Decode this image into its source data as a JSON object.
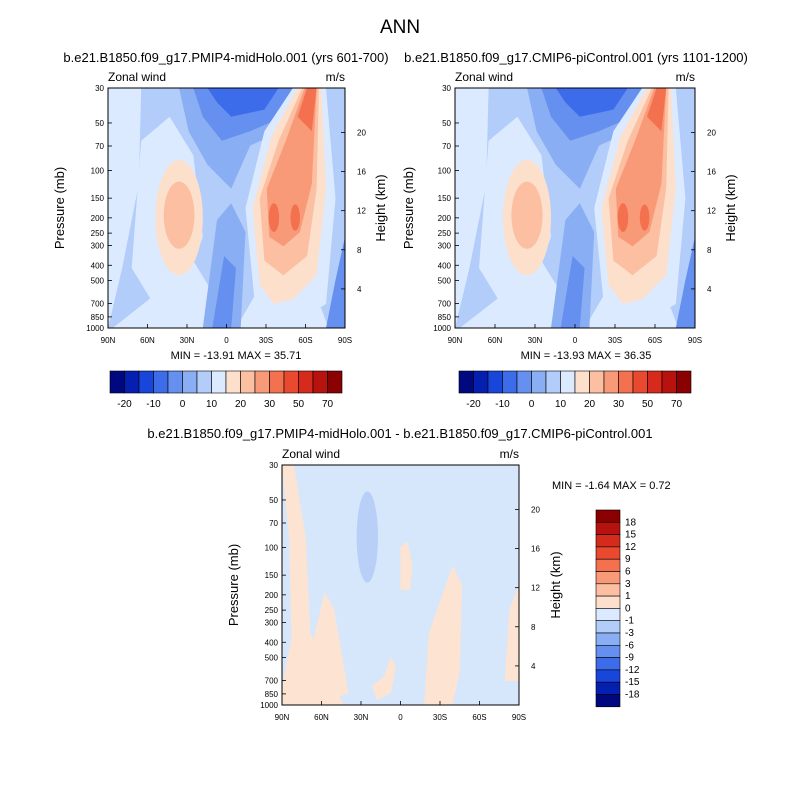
{
  "page": {
    "title": "ANN"
  },
  "colors": {
    "positive": [
      "#fde0cc",
      "#fcbfa1",
      "#f89a78",
      "#f4714f",
      "#e94a2f",
      "#d62a1c",
      "#b8120f",
      "#8b0000"
    ],
    "negative": [
      "#dbeaff",
      "#b3cdfa",
      "#8aaef3",
      "#6590ef",
      "#3d6ceb",
      "#1846db",
      "#0520b0",
      "#00087f"
    ],
    "diff_pos": "#fde4d2",
    "diff_neg": "#d6e7fb",
    "diff_neg2": "#b8cff7"
  },
  "chart_data": [
    {
      "type": "heatmap",
      "title": "b.e21.B1850.f09_g17.PMIP4-midHolo.001 (yrs 601-700)",
      "left_label": "Zonal wind",
      "right_label": "m/s",
      "xlabel": "",
      "ylabel": "Pressure (mb)",
      "ylabel_right": "Height (km)",
      "x_ticks": [
        "90N",
        "60N",
        "30N",
        "0",
        "30S",
        "60S",
        "90S"
      ],
      "y_ticks": [
        "30",
        "50",
        "70",
        "100",
        "150",
        "200",
        "250",
        "300",
        "400",
        "500",
        "700",
        "850",
        "1000"
      ],
      "y_ticks_right": [
        "20",
        "16",
        "12",
        "8",
        "4"
      ],
      "y_scale": "log",
      "ylim": [
        1000,
        30
      ],
      "stats": "MIN = -13.91  MAX =  35.71",
      "colorbar_labels": [
        "-20",
        "-10",
        "0",
        "10",
        "20",
        "30",
        "50",
        "70"
      ]
    },
    {
      "type": "heatmap",
      "title": "b.e21.B1850.f09_g17.CMIP6-piControl.001 (yrs 1101-1200)",
      "left_label": "Zonal wind",
      "right_label": "m/s",
      "xlabel": "",
      "ylabel": "Pressure (mb)",
      "ylabel_right": "Height (km)",
      "x_ticks": [
        "90N",
        "60N",
        "30N",
        "0",
        "30S",
        "60S",
        "90S"
      ],
      "y_ticks": [
        "30",
        "50",
        "70",
        "100",
        "150",
        "200",
        "250",
        "300",
        "400",
        "500",
        "700",
        "850",
        "1000"
      ],
      "y_ticks_right": [
        "20",
        "16",
        "12",
        "8",
        "4"
      ],
      "y_scale": "log",
      "ylim": [
        1000,
        30
      ],
      "stats": "MIN = -13.93  MAX =  36.35",
      "colorbar_labels": [
        "-20",
        "-10",
        "0",
        "10",
        "20",
        "30",
        "50",
        "70"
      ]
    },
    {
      "type": "heatmap",
      "title": "b.e21.B1850.f09_g17.PMIP4-midHolo.001 - b.e21.B1850.f09_g17.CMIP6-piControl.001",
      "left_label": "Zonal wind",
      "right_label": "m/s",
      "xlabel": "",
      "ylabel": "Pressure (mb)",
      "ylabel_right": "Height (km)",
      "x_ticks": [
        "90N",
        "60N",
        "30N",
        "0",
        "30S",
        "60S",
        "90S"
      ],
      "y_ticks": [
        "30",
        "50",
        "70",
        "100",
        "150",
        "200",
        "250",
        "300",
        "400",
        "500",
        "700",
        "850",
        "1000"
      ],
      "y_ticks_right": [
        "20",
        "16",
        "12",
        "8",
        "4"
      ],
      "y_scale": "log",
      "ylim": [
        1000,
        30
      ],
      "stats": "MIN =  -1.64  MAX =   0.72",
      "colorbar_labels": [
        "18",
        "15",
        "12",
        "9",
        "6",
        "3",
        "1",
        "0",
        "-1",
        "-3",
        "-6",
        "-9",
        "-12",
        "-15",
        "-18"
      ]
    }
  ]
}
